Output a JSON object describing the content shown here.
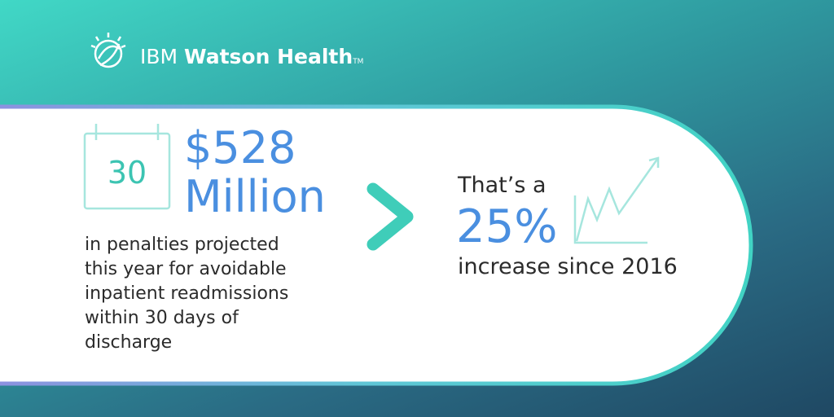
{
  "logo": {
    "brand": "IBM",
    "product": "Watson Health",
    "mark": "TM"
  },
  "left": {
    "calendar_day": "30",
    "amount": "$528",
    "unit": "Million",
    "description": [
      "in penalties projected",
      "this year for avoidable",
      "inpatient readmissions",
      "within 30 days of",
      "discharge"
    ]
  },
  "right": {
    "lead": "That’s a",
    "percent": "25%",
    "caption": "increase since 2016"
  }
}
